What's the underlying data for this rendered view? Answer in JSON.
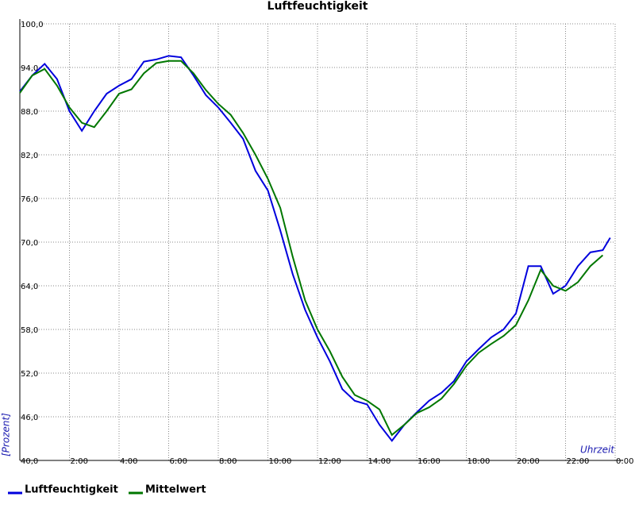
{
  "chart_data": {
    "type": "line",
    "title": "Luftfeuchtigkeit",
    "y_label": "[Prozent]",
    "x_label": "Uhrzeit",
    "x": [
      0,
      0.5,
      1,
      1.5,
      2,
      2.5,
      3,
      3.5,
      4,
      4.5,
      5,
      5.5,
      6,
      6.5,
      7,
      7.5,
      8,
      8.5,
      9,
      9.5,
      10,
      10.5,
      11,
      11.5,
      12,
      12.5,
      13,
      13.5,
      14,
      14.5,
      15,
      15.5,
      16,
      16.5,
      17,
      17.5,
      18,
      18.5,
      19,
      19.5,
      20,
      20.5,
      21,
      21.5,
      22,
      22.5,
      23,
      23.5,
      23.8
    ],
    "series": [
      {
        "name": "Luftfeuchtigkeit",
        "color": "#0000dd",
        "values": [
          90.7,
          92.9,
          94.5,
          92.4,
          88,
          85.3,
          88,
          90.4,
          91.5,
          92.4,
          94.8,
          95.1,
          95.6,
          95.4,
          92.9,
          90.2,
          88.5,
          86.4,
          84.2,
          79.8,
          77.1,
          71.6,
          65.6,
          60.7,
          56.9,
          53.6,
          49.8,
          48.2,
          47.7,
          44.9,
          42.7,
          44.9,
          46.6,
          48.2,
          49.3,
          50.9,
          53.6,
          55.3,
          56.9,
          58,
          60.2,
          66.7,
          66.7,
          62.9,
          64,
          66.7,
          68.6,
          68.9,
          70.6
        ]
      },
      {
        "name": "Mittelwert",
        "color": "#007700",
        "values": [
          90.5,
          92.9,
          93.8,
          91.5,
          88.5,
          86.4,
          85.8,
          88,
          90.4,
          91,
          93.2,
          94.6,
          94.9,
          94.9,
          93.2,
          90.9,
          89,
          87.5,
          85,
          82,
          78.7,
          74.7,
          68,
          62,
          58,
          55,
          51.5,
          49,
          48.2,
          47,
          43.5,
          44.9,
          46.5,
          47.3,
          48.5,
          50.5,
          53,
          54.8,
          56,
          57.1,
          58.6,
          62,
          66.2,
          64,
          63.3,
          64.5,
          66.7,
          68.2,
          null
        ]
      }
    ],
    "xlim": [
      0,
      24
    ],
    "xticks": [
      {
        "value": 2,
        "label": "2:00"
      },
      {
        "value": 4,
        "label": "4:00"
      },
      {
        "value": 6,
        "label": "6:00"
      },
      {
        "value": 8,
        "label": "8:00"
      },
      {
        "value": 10,
        "label": "10:00"
      },
      {
        "value": 12,
        "label": "12:00"
      },
      {
        "value": 14,
        "label": "14:00"
      },
      {
        "value": 16,
        "label": "16:00"
      },
      {
        "value": 18,
        "label": "18:00"
      },
      {
        "value": 20,
        "label": "20:00"
      },
      {
        "value": 22,
        "label": "22:00"
      },
      {
        "value": 24,
        "label": "0:00"
      }
    ],
    "ylim": [
      40,
      100
    ],
    "yticks": [
      {
        "value": 40,
        "label": "40,0"
      },
      {
        "value": 46,
        "label": "46,0"
      },
      {
        "value": 52,
        "label": "52,0"
      },
      {
        "value": 58,
        "label": "58,0"
      },
      {
        "value": 64,
        "label": "64,0"
      },
      {
        "value": 70,
        "label": "70,0"
      },
      {
        "value": 76,
        "label": "76,0"
      },
      {
        "value": 82,
        "label": "82,0"
      },
      {
        "value": 88,
        "label": "88,0"
      },
      {
        "value": 94,
        "label": "94,0"
      },
      {
        "value": 100,
        "label": "100,0"
      }
    ],
    "grid": true
  }
}
